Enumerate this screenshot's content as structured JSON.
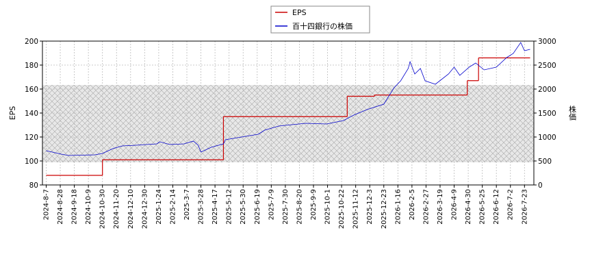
{
  "chart_data": {
    "type": "line",
    "ylabel": "EPS",
    "y2label": "株価",
    "xlim": [
      -4,
      520
    ],
    "xticks": [
      {
        "value": 0,
        "label": "2024-8-7"
      },
      {
        "value": 15,
        "label": "2024-8-28"
      },
      {
        "value": 30,
        "label": "2024-9-18"
      },
      {
        "value": 45,
        "label": "2024-10-9"
      },
      {
        "value": 60,
        "label": "2024-10-30"
      },
      {
        "value": 75,
        "label": "2024-11-20"
      },
      {
        "value": 90,
        "label": "2024-12-10"
      },
      {
        "value": 105,
        "label": "2024-12-30"
      },
      {
        "value": 120,
        "label": "2025-1-24"
      },
      {
        "value": 135,
        "label": "2025-2-14"
      },
      {
        "value": 150,
        "label": "2025-3-7"
      },
      {
        "value": 165,
        "label": "2025-3-28"
      },
      {
        "value": 180,
        "label": "2025-4-17"
      },
      {
        "value": 195,
        "label": "2025-5-12"
      },
      {
        "value": 210,
        "label": "2025-5-30"
      },
      {
        "value": 225,
        "label": "2025-6-19"
      },
      {
        "value": 240,
        "label": "2025-7-9"
      },
      {
        "value": 255,
        "label": "2025-7-30"
      },
      {
        "value": 270,
        "label": "2025-8-20"
      },
      {
        "value": 285,
        "label": "2025-9-9"
      },
      {
        "value": 300,
        "label": "2025-10-1"
      },
      {
        "value": 315,
        "label": "2025-10-22"
      },
      {
        "value": 330,
        "label": "2025-11-12"
      },
      {
        "value": 345,
        "label": "2025-12-3"
      },
      {
        "value": 360,
        "label": "2025-12-23"
      },
      {
        "value": 375,
        "label": "2026-1-16"
      },
      {
        "value": 390,
        "label": "2026-2-5"
      },
      {
        "value": 405,
        "label": "2026-2-27"
      },
      {
        "value": 420,
        "label": "2026-3-19"
      },
      {
        "value": 435,
        "label": "2026-4-9"
      },
      {
        "value": 450,
        "label": "2026-4-30"
      },
      {
        "value": 465,
        "label": "2026-5-25"
      },
      {
        "value": 480,
        "label": "2026-6-12"
      },
      {
        "value": 495,
        "label": "2026-7-2"
      },
      {
        "value": 510,
        "label": "2026-7-23"
      }
    ],
    "ylim": [
      80,
      200
    ],
    "yticks": [
      80,
      100,
      120,
      140,
      160,
      180,
      200
    ],
    "y2lim": [
      0,
      3000
    ],
    "y2ticks": [
      0,
      500,
      1000,
      1500,
      2000,
      2500,
      3000
    ],
    "grid": true,
    "legend": "top",
    "series": [
      {
        "name": "EPS",
        "color": "#cc0000",
        "step": "post",
        "x": [
          0,
          60,
          189,
          321,
          350,
          449,
          461,
          516
        ],
        "values": [
          88,
          101,
          137,
          154,
          155,
          167,
          186,
          186
        ]
      },
      {
        "name": "百十四銀行の株価",
        "color": "#0000cc",
        "axis": "y2",
        "x": [
          0,
          16,
          24,
          52,
          60,
          71,
          81,
          96,
          118,
          121,
          132,
          147,
          157,
          162,
          165,
          176,
          189,
          191,
          204,
          226,
          233,
          248,
          262,
          277,
          299,
          317,
          328,
          342,
          360,
          371,
          378,
          386,
          388,
          393,
          399,
          404,
          415,
          429,
          435,
          441,
          451,
          458,
          467,
          480,
          491,
          498,
          506,
          510,
          516
        ],
        "values": [
          714,
          643,
          614,
          629,
          657,
          757,
          814,
          829,
          857,
          900,
          843,
          857,
          914,
          829,
          686,
          786,
          857,
          943,
          986,
          1057,
          1143,
          1229,
          1257,
          1286,
          1271,
          1343,
          1457,
          1571,
          1686,
          2029,
          2171,
          2429,
          2571,
          2314,
          2429,
          2171,
          2100,
          2314,
          2457,
          2286,
          2457,
          2543,
          2400,
          2457,
          2657,
          2743,
          2971,
          2800,
          2829
        ]
      }
    ]
  }
}
